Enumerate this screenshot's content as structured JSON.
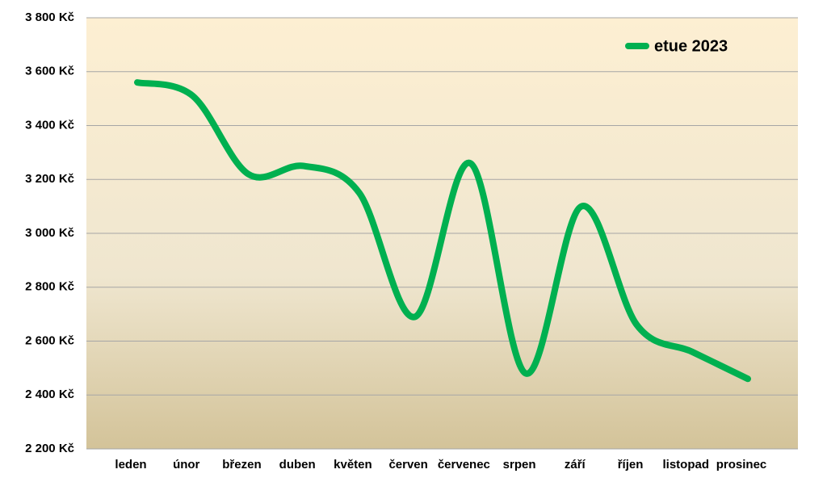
{
  "chart_data": {
    "type": "line",
    "categories": [
      "leden",
      "únor",
      "březen",
      "duben",
      "květen",
      "červen",
      "červenec",
      "srpen",
      "září",
      "říjen",
      "listopad",
      "prosinec"
    ],
    "series": [
      {
        "name": "etue 2023",
        "color": "#00b050",
        "values": [
          3560,
          3510,
          3220,
          3250,
          3150,
          2690,
          3260,
          2480,
          3100,
          2660,
          2560,
          2460
        ]
      }
    ],
    "ylim": [
      2200,
      3800
    ],
    "yticks": [
      {
        "value": 2200,
        "label": "2 200 Kč"
      },
      {
        "value": 2400,
        "label": "2 400 Kč"
      },
      {
        "value": 2600,
        "label": "2 600 Kč"
      },
      {
        "value": 2800,
        "label": "2 800 Kč"
      },
      {
        "value": 3000,
        "label": "3 000 Kč"
      },
      {
        "value": 3200,
        "label": "3 200 Kč"
      },
      {
        "value": 3400,
        "label": "3 400 Kč"
      },
      {
        "value": 3600,
        "label": "3 600 Kč"
      },
      {
        "value": 3800,
        "label": "3 800 Kč"
      }
    ],
    "grid": true,
    "smooth": true,
    "legend": "top-right"
  }
}
